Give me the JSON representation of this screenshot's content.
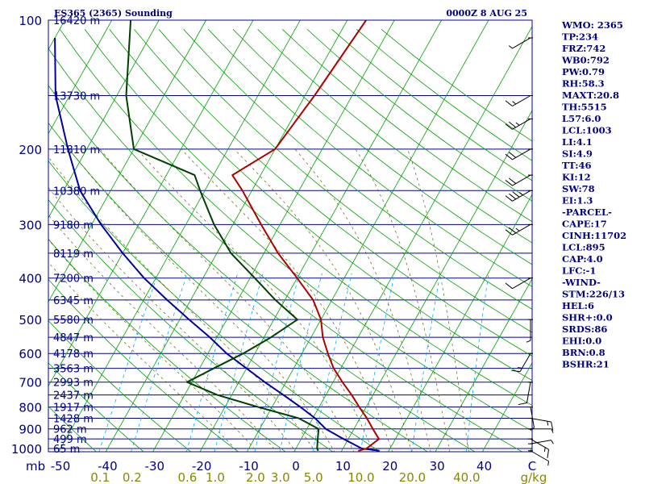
{
  "header": {
    "station": "ES365 (2365) Sounding",
    "time": "0000Z  8 AUG 25"
  },
  "colors": {
    "isobar": "#0000a0",
    "isotherm": "#00a000",
    "dry_adiabat": "#00a000",
    "moist_adiabat": "#606000",
    "mixing_ratio": "#00aaff",
    "temperature": "#b00000",
    "dewpoint": "#004000",
    "parcel": "#0000a0",
    "label_blue": "#000080",
    "label_olive": "#888800",
    "wind": "#000000"
  },
  "chart_data": {
    "type": "skew-t log-p",
    "pressure_levels": [
      100,
      200,
      300,
      400,
      500,
      600,
      700,
      800,
      900,
      1000
    ],
    "pressure_labels": [
      "100",
      "200",
      "300",
      "400",
      "500",
      "600",
      "700",
      "800",
      "900",
      "1000"
    ],
    "pressure_unit": "mb",
    "temperature_ticks": [
      "-50",
      "-40",
      "-30",
      "-20",
      "-10",
      "0",
      "10",
      "20",
      "30",
      "40",
      "C"
    ],
    "temperature_ticks_values": [
      -50,
      -40,
      -30,
      -20,
      -10,
      0,
      10,
      20,
      30,
      40
    ],
    "mixing_ratio_labels": [
      "0.1",
      "0.2",
      "0.6",
      "1.0",
      "2.0",
      "3.0",
      "5.0",
      "10.0",
      "20.0",
      "40.0",
      "g/kg"
    ],
    "mixing_ratio_values": [
      0.1,
      0.2,
      0.6,
      1.0,
      2.0,
      3.0,
      5.0,
      10.0,
      20.0,
      40.0
    ],
    "height_labels": [
      {
        "p": 100,
        "label": "16420 m"
      },
      {
        "p": 150,
        "label": "13730 m"
      },
      {
        "p": 200,
        "label": "11810 m"
      },
      {
        "p": 250,
        "label": "10380 m"
      },
      {
        "p": 300,
        "label": "9180 m"
      },
      {
        "p": 350,
        "label": "8119 m"
      },
      {
        "p": 400,
        "label": "7200 m"
      },
      {
        "p": 450,
        "label": "6345 m"
      },
      {
        "p": 500,
        "label": "5580 m"
      },
      {
        "p": 550,
        "label": "4847 m"
      },
      {
        "p": 600,
        "label": "4178 m"
      },
      {
        "p": 650,
        "label": "3563 m"
      },
      {
        "p": 700,
        "label": "2993 m"
      },
      {
        "p": 750,
        "label": "2437 m"
      },
      {
        "p": 800,
        "label": "1917 m"
      },
      {
        "p": 850,
        "label": "1428 m"
      },
      {
        "p": 900,
        "label": "962 m"
      },
      {
        "p": 950,
        "label": "499 m"
      },
      {
        "p": 1000,
        "label": "65 m"
      }
    ],
    "temperature_profile": [
      [
        1012,
        13.5
      ],
      [
        1000,
        15.0
      ],
      [
        950,
        16.5
      ],
      [
        900,
        14.0
      ],
      [
        850,
        11.5
      ],
      [
        800,
        8.5
      ],
      [
        750,
        5.5
      ],
      [
        700,
        2.0
      ],
      [
        650,
        -1.5
      ],
      [
        600,
        -4.5
      ],
      [
        550,
        -7.5
      ],
      [
        500,
        -10.0
      ],
      [
        450,
        -14.0
      ],
      [
        400,
        -20.0
      ],
      [
        350,
        -27.0
      ],
      [
        300,
        -34.0
      ],
      [
        250,
        -42.0
      ],
      [
        230,
        -46.0
      ],
      [
        200,
        -40.0
      ],
      [
        150,
        -38.0
      ],
      [
        100,
        -36.0
      ]
    ],
    "dewpoint_profile": [
      [
        1012,
        5.0
      ],
      [
        1000,
        4.5
      ],
      [
        950,
        3.5
      ],
      [
        900,
        2.5
      ],
      [
        850,
        -3.0
      ],
      [
        800,
        -13.0
      ],
      [
        750,
        -23.0
      ],
      [
        700,
        -31.0
      ],
      [
        650,
        -27.0
      ],
      [
        600,
        -22.5
      ],
      [
        550,
        -18.5
      ],
      [
        500,
        -15.0
      ],
      [
        450,
        -22.0
      ],
      [
        400,
        -29.0
      ],
      [
        350,
        -37.0
      ],
      [
        300,
        -44.0
      ],
      [
        250,
        -51.0
      ],
      [
        230,
        -54.0
      ],
      [
        200,
        -70.0
      ],
      [
        150,
        -78.0
      ],
      [
        100,
        -86.0
      ]
    ],
    "parcel_profile": [
      [
        1012,
        18.0
      ],
      [
        1000,
        14.0
      ],
      [
        950,
        9.0
      ],
      [
        900,
        4.0
      ],
      [
        850,
        0.5
      ],
      [
        800,
        -4.0
      ],
      [
        750,
        -9.0
      ],
      [
        700,
        -14.5
      ],
      [
        650,
        -20.0
      ],
      [
        600,
        -26.0
      ],
      [
        550,
        -31.5
      ],
      [
        500,
        -38.0
      ],
      [
        450,
        -45.0
      ],
      [
        400,
        -52.5
      ],
      [
        350,
        -60.0
      ],
      [
        300,
        -68.0
      ],
      [
        250,
        -76.5
      ],
      [
        200,
        -84.0
      ],
      [
        150,
        -93.0
      ],
      [
        110,
        -100.0
      ]
    ],
    "wind_barbs": [
      {
        "p": 1012,
        "dir": 60,
        "speed": 5
      },
      {
        "p": 975,
        "dir": 100,
        "speed": 5
      },
      {
        "p": 950,
        "dir": 60,
        "speed": 15
      },
      {
        "p": 900,
        "dir": 90,
        "speed": 5
      },
      {
        "p": 850,
        "dir": 80,
        "speed": 15
      },
      {
        "p": 800,
        "dir": 10,
        "speed": 5
      },
      {
        "p": 700,
        "dir": 350,
        "speed": 10
      },
      {
        "p": 600,
        "dir": 330,
        "speed": 15
      },
      {
        "p": 500,
        "dir": 0,
        "speed": 5
      },
      {
        "p": 400,
        "dir": 300,
        "speed": 10
      },
      {
        "p": 300,
        "dir": 300,
        "speed": 25
      },
      {
        "p": 250,
        "dir": 300,
        "speed": 35
      },
      {
        "p": 230,
        "dir": 300,
        "speed": 20
      },
      {
        "p": 200,
        "dir": 300,
        "speed": 20
      },
      {
        "p": 170,
        "dir": 300,
        "speed": 25
      },
      {
        "p": 150,
        "dir": 300,
        "speed": 15
      },
      {
        "p": 110,
        "dir": 300,
        "speed": 5
      }
    ]
  },
  "stats": [
    "WMO: 2365",
    "TP:234",
    "FRZ:742",
    "WB0:792",
    "PW:0.79",
    "RH:58.3",
    "MAXT:20.8",
    "TH:5515",
    "L57:6.0",
    "LCL:1003",
    "LI:4.1",
    "SI:4.9",
    "TT:46",
    "KI:12",
    "SW:78",
    "EI:1.3",
    "-PARCEL-",
    "CAPE:17",
    "CINH:11702",
    "LCL:895",
    "CAP:4.0",
    "LFC:-1",
    "-WIND-",
    "STM:226/13",
    "HEL:6",
    "SHR+:0.0",
    "SRDS:86",
    "EHI:0.0",
    "BRN:0.8",
    "BSHR:21"
  ]
}
